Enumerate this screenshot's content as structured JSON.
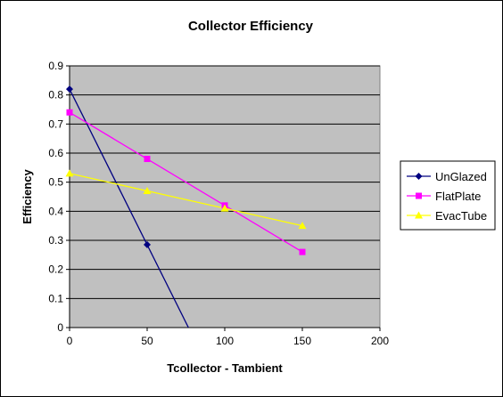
{
  "chart_data": {
    "type": "line",
    "title": "Collector Efficiency",
    "xlabel": "Tcollector - Tambient",
    "ylabel": "Efficiency",
    "xlim": [
      0,
      200
    ],
    "ylim": [
      0,
      0.9
    ],
    "x_ticks": [
      "0",
      "50",
      "100",
      "150",
      "200"
    ],
    "y_ticks": [
      "0",
      "0.1",
      "0.2",
      "0.3",
      "0.4",
      "0.5",
      "0.6",
      "0.7",
      "0.8",
      "0.9"
    ],
    "grid": "horizontal",
    "plot_background": "#c0c0c0",
    "legend_position": "right",
    "series": [
      {
        "name": "UnGlazed",
        "color": "#000080",
        "marker": "diamond",
        "points": [
          [
            0,
            0.82
          ],
          [
            50,
            0.285
          ]
        ],
        "trendline": [
          [
            0,
            0.82
          ],
          [
            76.6,
            0
          ]
        ]
      },
      {
        "name": "FlatPlate",
        "color": "#ff00ff",
        "marker": "square",
        "points": [
          [
            0,
            0.74
          ],
          [
            50,
            0.58
          ],
          [
            100,
            0.42
          ],
          [
            150,
            0.26
          ]
        ],
        "trendline": [
          [
            0,
            0.74
          ],
          [
            150,
            0.26
          ]
        ]
      },
      {
        "name": "EvacTube",
        "color": "#ffff00",
        "marker": "triangle",
        "points": [
          [
            0,
            0.53
          ],
          [
            50,
            0.47
          ],
          [
            100,
            0.41
          ],
          [
            150,
            0.35
          ]
        ],
        "trendline": [
          [
            0,
            0.53
          ],
          [
            150,
            0.35
          ]
        ]
      }
    ]
  }
}
